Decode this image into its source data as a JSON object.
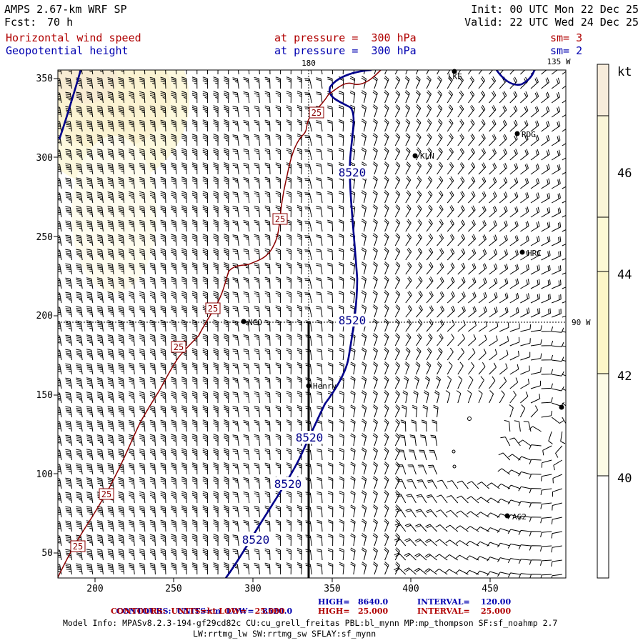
{
  "header": {
    "model": "AMPS 2.67-km WRF SP",
    "fcst_label": "Fcst:",
    "fcst_value": "70 h",
    "init": "Init: 00 UTC Mon 22 Dec 25",
    "valid": "Valid: 22 UTC Wed 24 Dec 25",
    "field1": "Horizontal wind speed",
    "field1_level": "at pressure =  300 hPa",
    "field1_sm": "sm= 3",
    "field2": "Geopotential height",
    "field2_level": "at pressure =  300 hPa",
    "field2_sm": "sm= 2"
  },
  "map": {
    "lon_labels": {
      "top": "180",
      "top_right": "135 W",
      "right": "90 W"
    },
    "x_ticks": [
      "200",
      "250",
      "300",
      "350",
      "400",
      "450"
    ],
    "y_ticks": [
      "50",
      "100",
      "150",
      "200",
      "250",
      "300",
      "350"
    ],
    "stations": [
      {
        "name": "LKE"
      },
      {
        "name": "RDG"
      },
      {
        "name": "KLN"
      },
      {
        "name": "HRC"
      },
      {
        "name": "NCO"
      },
      {
        "name": "Henry"
      },
      {
        "name": "AG2"
      }
    ],
    "contour_labels": {
      "height": [
        "8520",
        "8520",
        "8520",
        "8520",
        "8520"
      ],
      "speed": [
        "25",
        "25",
        "25",
        "25",
        "25",
        "25"
      ]
    }
  },
  "colorbar": {
    "unit": "kt",
    "ticks": [
      "46",
      "44",
      "42",
      "40"
    ],
    "colors": [
      "#f7ecdb",
      "#faf5d8",
      "#fdf9d5",
      "#fcf6c8",
      "#fcfbe6",
      "#ffffff"
    ]
  },
  "footer": {
    "line1": {
      "a": "CONTOURS:  UNITS=m  LOW=   8520.0",
      "b": "HIGH=   8640.0",
      "c": "INTERVAL=    120.00"
    },
    "line2": {
      "a": "CONTOURS:  UNITS=kt LOW=   25.000",
      "b": "HIGH=   25.000",
      "c": "INTERVAL=    25.000"
    },
    "info1": "Model Info: MPASv8.2.3-194-gf29cd82c CU:cu_grell_freitas PBL:bl_mynn MP:mp_thompson SF:sf_noahmp 2.7",
    "info2": "LW:rrtmg_lw SW:rrtmg_sw SFLAY:sf_mynn"
  },
  "colors": {
    "height_contour": "#00008b",
    "speed_contour": "#8b0000",
    "barb": "#000000"
  }
}
